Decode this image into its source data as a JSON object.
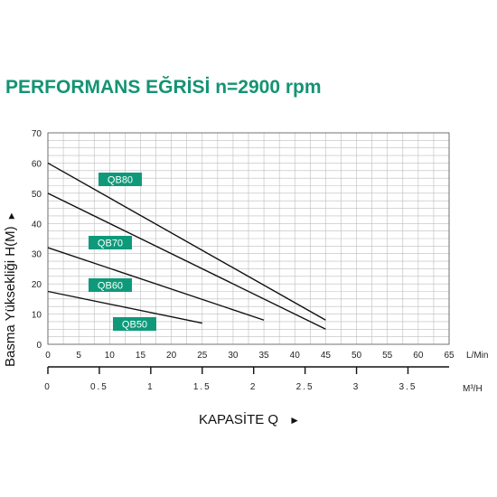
{
  "chart_data": {
    "type": "line",
    "title": "PERFORMANS EĞRİSİ n=2900 rpm",
    "title_color": "#149374",
    "tag_color": "#0e9a7a",
    "ylabel": "Basma Yüksekliği H(M)",
    "ylabel_arrow": "►",
    "xlabel": "KAPASİTE Q",
    "xlabel_arrow": "►",
    "x_unit": "L/Min",
    "x2_unit": "M³/H",
    "xlim": [
      0,
      65
    ],
    "ylim": [
      0,
      70
    ],
    "grid": true,
    "x_ticks": [
      "0",
      "5",
      "10",
      "15",
      "20",
      "25",
      "30",
      "35",
      "40",
      "45",
      "50",
      "55",
      "60",
      "65"
    ],
    "y_ticks": [
      "0",
      "10",
      "20",
      "30",
      "40",
      "50",
      "60",
      "70"
    ],
    "x2_ticks": [
      {
        "value": 0,
        "label": "0"
      },
      {
        "value": 0.5,
        "label": "0.5"
      },
      {
        "value": 1,
        "label": "1"
      },
      {
        "value": 1.5,
        "label": "1.5"
      },
      {
        "value": 2,
        "label": "2"
      },
      {
        "value": 2.5,
        "label": "2.5"
      },
      {
        "value": 3,
        "label": "3"
      },
      {
        "value": 3.5,
        "label": "3.5"
      }
    ],
    "x2_scale_lmin_per_m3h": 16.667,
    "series": [
      {
        "name": "QB80",
        "x": [
          0,
          45
        ],
        "y": [
          60,
          8
        ]
      },
      {
        "name": "QB70",
        "x": [
          0,
          45
        ],
        "y": [
          50,
          5
        ]
      },
      {
        "name": "QB60",
        "x": [
          0,
          35
        ],
        "y": [
          32,
          8
        ]
      },
      {
        "name": "QB50",
        "x": [
          0,
          25
        ],
        "y": [
          17.5,
          7
        ]
      }
    ]
  }
}
